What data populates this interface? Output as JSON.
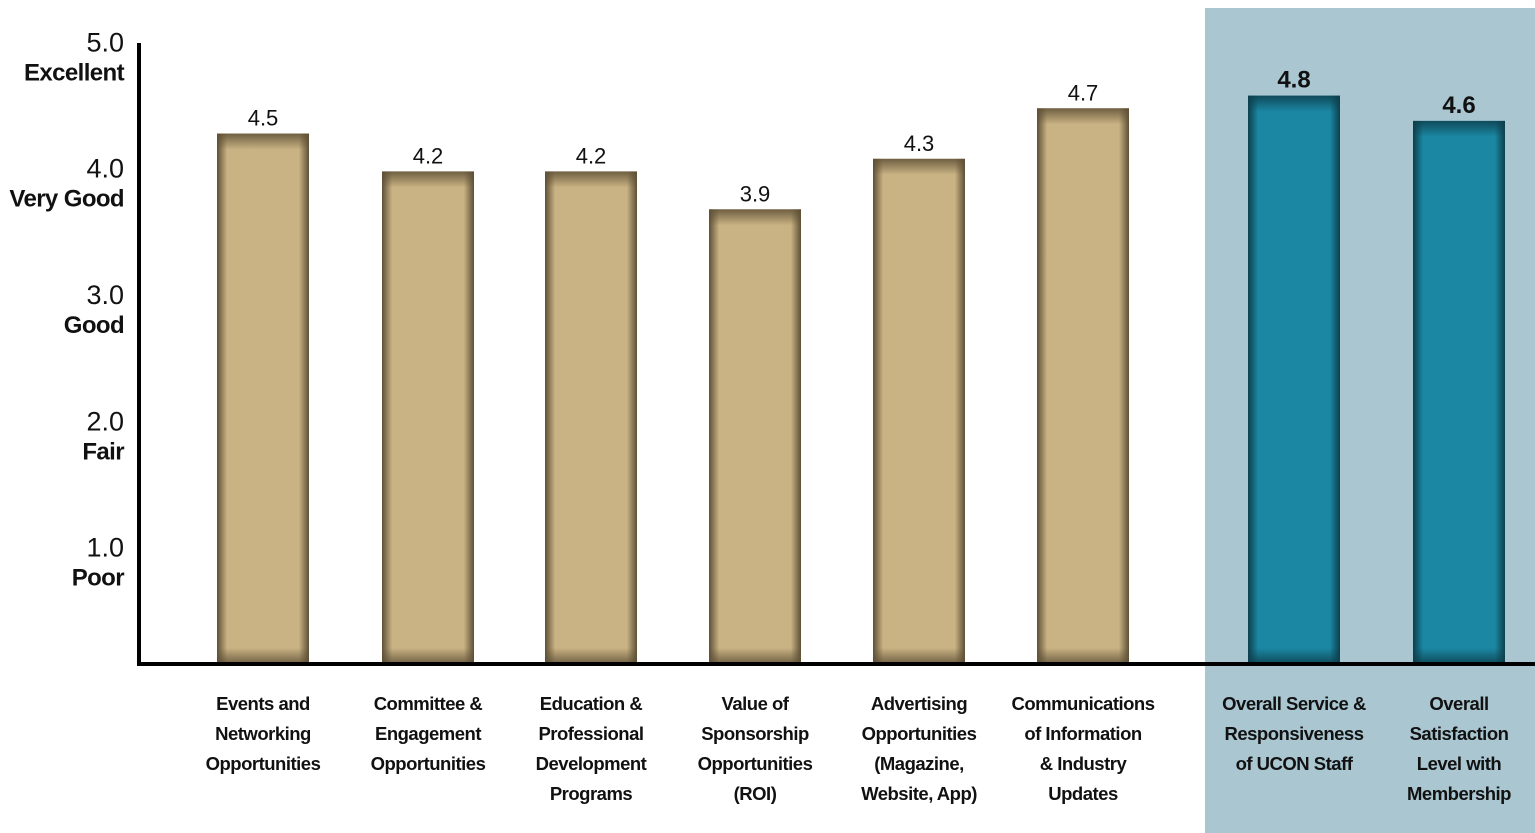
{
  "chart_data": {
    "type": "bar",
    "title": "",
    "xlabel": "",
    "ylabel": "",
    "ylim": [
      0.3,
      5.0
    ],
    "grid": false,
    "legend": "none",
    "y_ticks": [
      {
        "value": 5.0,
        "label": "5.0",
        "rating": "Excellent"
      },
      {
        "value": 4.0,
        "label": "4.0",
        "rating": "Very Good"
      },
      {
        "value": 3.0,
        "label": "3.0",
        "rating": "Good"
      },
      {
        "value": 2.0,
        "label": "2.0",
        "rating": "Fair"
      },
      {
        "value": 1.0,
        "label": "1.0",
        "rating": "Poor"
      }
    ],
    "categories": [
      "Events and Networking Opportunities",
      "Committee & Engagement Opportunities",
      "Education & Professional Development Programs",
      "Value of Sponsorship Opportunities (ROI)",
      "Advertising Opportunities (Magazine, Website, App)",
      "Communications of Information & Industry Updates",
      "Overall Service & Responsiveness of UCON Staff",
      "Overall Satisfaction Level with Membership"
    ],
    "category_lines": [
      [
        "Events and",
        "Networking",
        "Opportunities"
      ],
      [
        "Committee &",
        "Engagement",
        "Opportunities"
      ],
      [
        "Education &",
        "Professional",
        "Development",
        "Programs"
      ],
      [
        "Value of",
        "Sponsorship",
        "Opportunities",
        "(ROI)"
      ],
      [
        "Advertising",
        "Opportunities",
        "(Magazine,",
        "Website, App)"
      ],
      [
        "Communications",
        "of Information",
        "& Industry",
        "Updates"
      ],
      [
        "Overall Service &",
        "Responsiveness",
        "of UCON Staff"
      ],
      [
        "Overall",
        "Satisfaction",
        "Level with",
        "Membership"
      ]
    ],
    "values": [
      4.5,
      4.2,
      4.2,
      3.9,
      4.3,
      4.7,
      4.8,
      4.6
    ],
    "value_labels": [
      "4.5",
      "4.2",
      "4.2",
      "3.9",
      "4.3",
      "4.7",
      "4.8",
      "4.6"
    ],
    "highlighted": [
      false,
      false,
      false,
      false,
      false,
      false,
      true,
      true
    ],
    "colors": {
      "bar": "#c9b283",
      "bar_edge": "#5e5036",
      "bar_highlight": "#1b87a3",
      "bar_highlight_edge": "#0d3f4c",
      "highlight_panel": "#a9c6d1",
      "axis": "#000000",
      "text": "#111111"
    }
  }
}
